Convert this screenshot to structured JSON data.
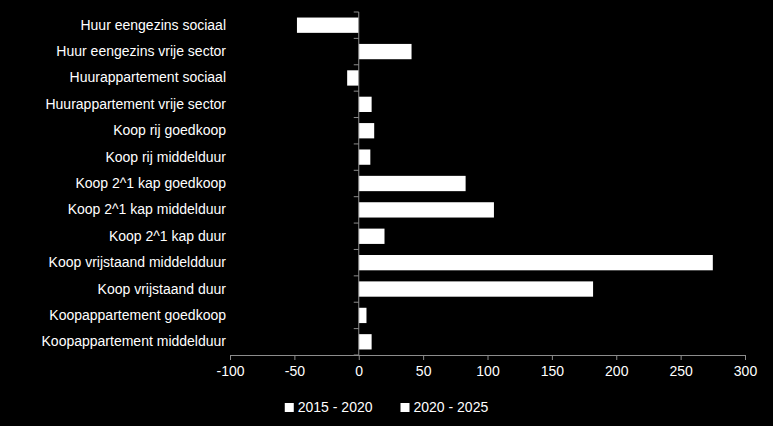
{
  "chart_data": {
    "type": "bar",
    "orientation": "horizontal",
    "categories": [
      "Huur eengezins sociaal",
      "Huur eengezins vrije sector",
      "Huurappartement sociaal",
      "Huurappartement vrije sector",
      "Koop rij goedkoop",
      "Koop rij middelduur",
      "Koop 2^1 kap goedkoop",
      "Koop 2^1 kap middelduur",
      "Koop 2^1 kap duur",
      "Koop vrijstaand middeldduur",
      "Koop vrijstaand duur",
      "Koopappartement goedkoop",
      "Koopappartement middelduur"
    ],
    "series": [
      {
        "name": "2015 - 2020",
        "color": "#ffffff",
        "values": [
          -48,
          41,
          -9,
          10,
          12,
          9,
          83,
          105,
          20,
          275,
          182,
          6,
          10
        ]
      },
      {
        "name": "2020 - 2025",
        "color": "#ffffff",
        "values": [
          null,
          null,
          null,
          null,
          null,
          null,
          null,
          null,
          null,
          null,
          null,
          null,
          null
        ]
      }
    ],
    "xlim": [
      -100,
      300
    ],
    "xticks": [
      -100,
      -50,
      0,
      50,
      100,
      150,
      200,
      250,
      300
    ],
    "grid": false,
    "legend": "bottom"
  }
}
